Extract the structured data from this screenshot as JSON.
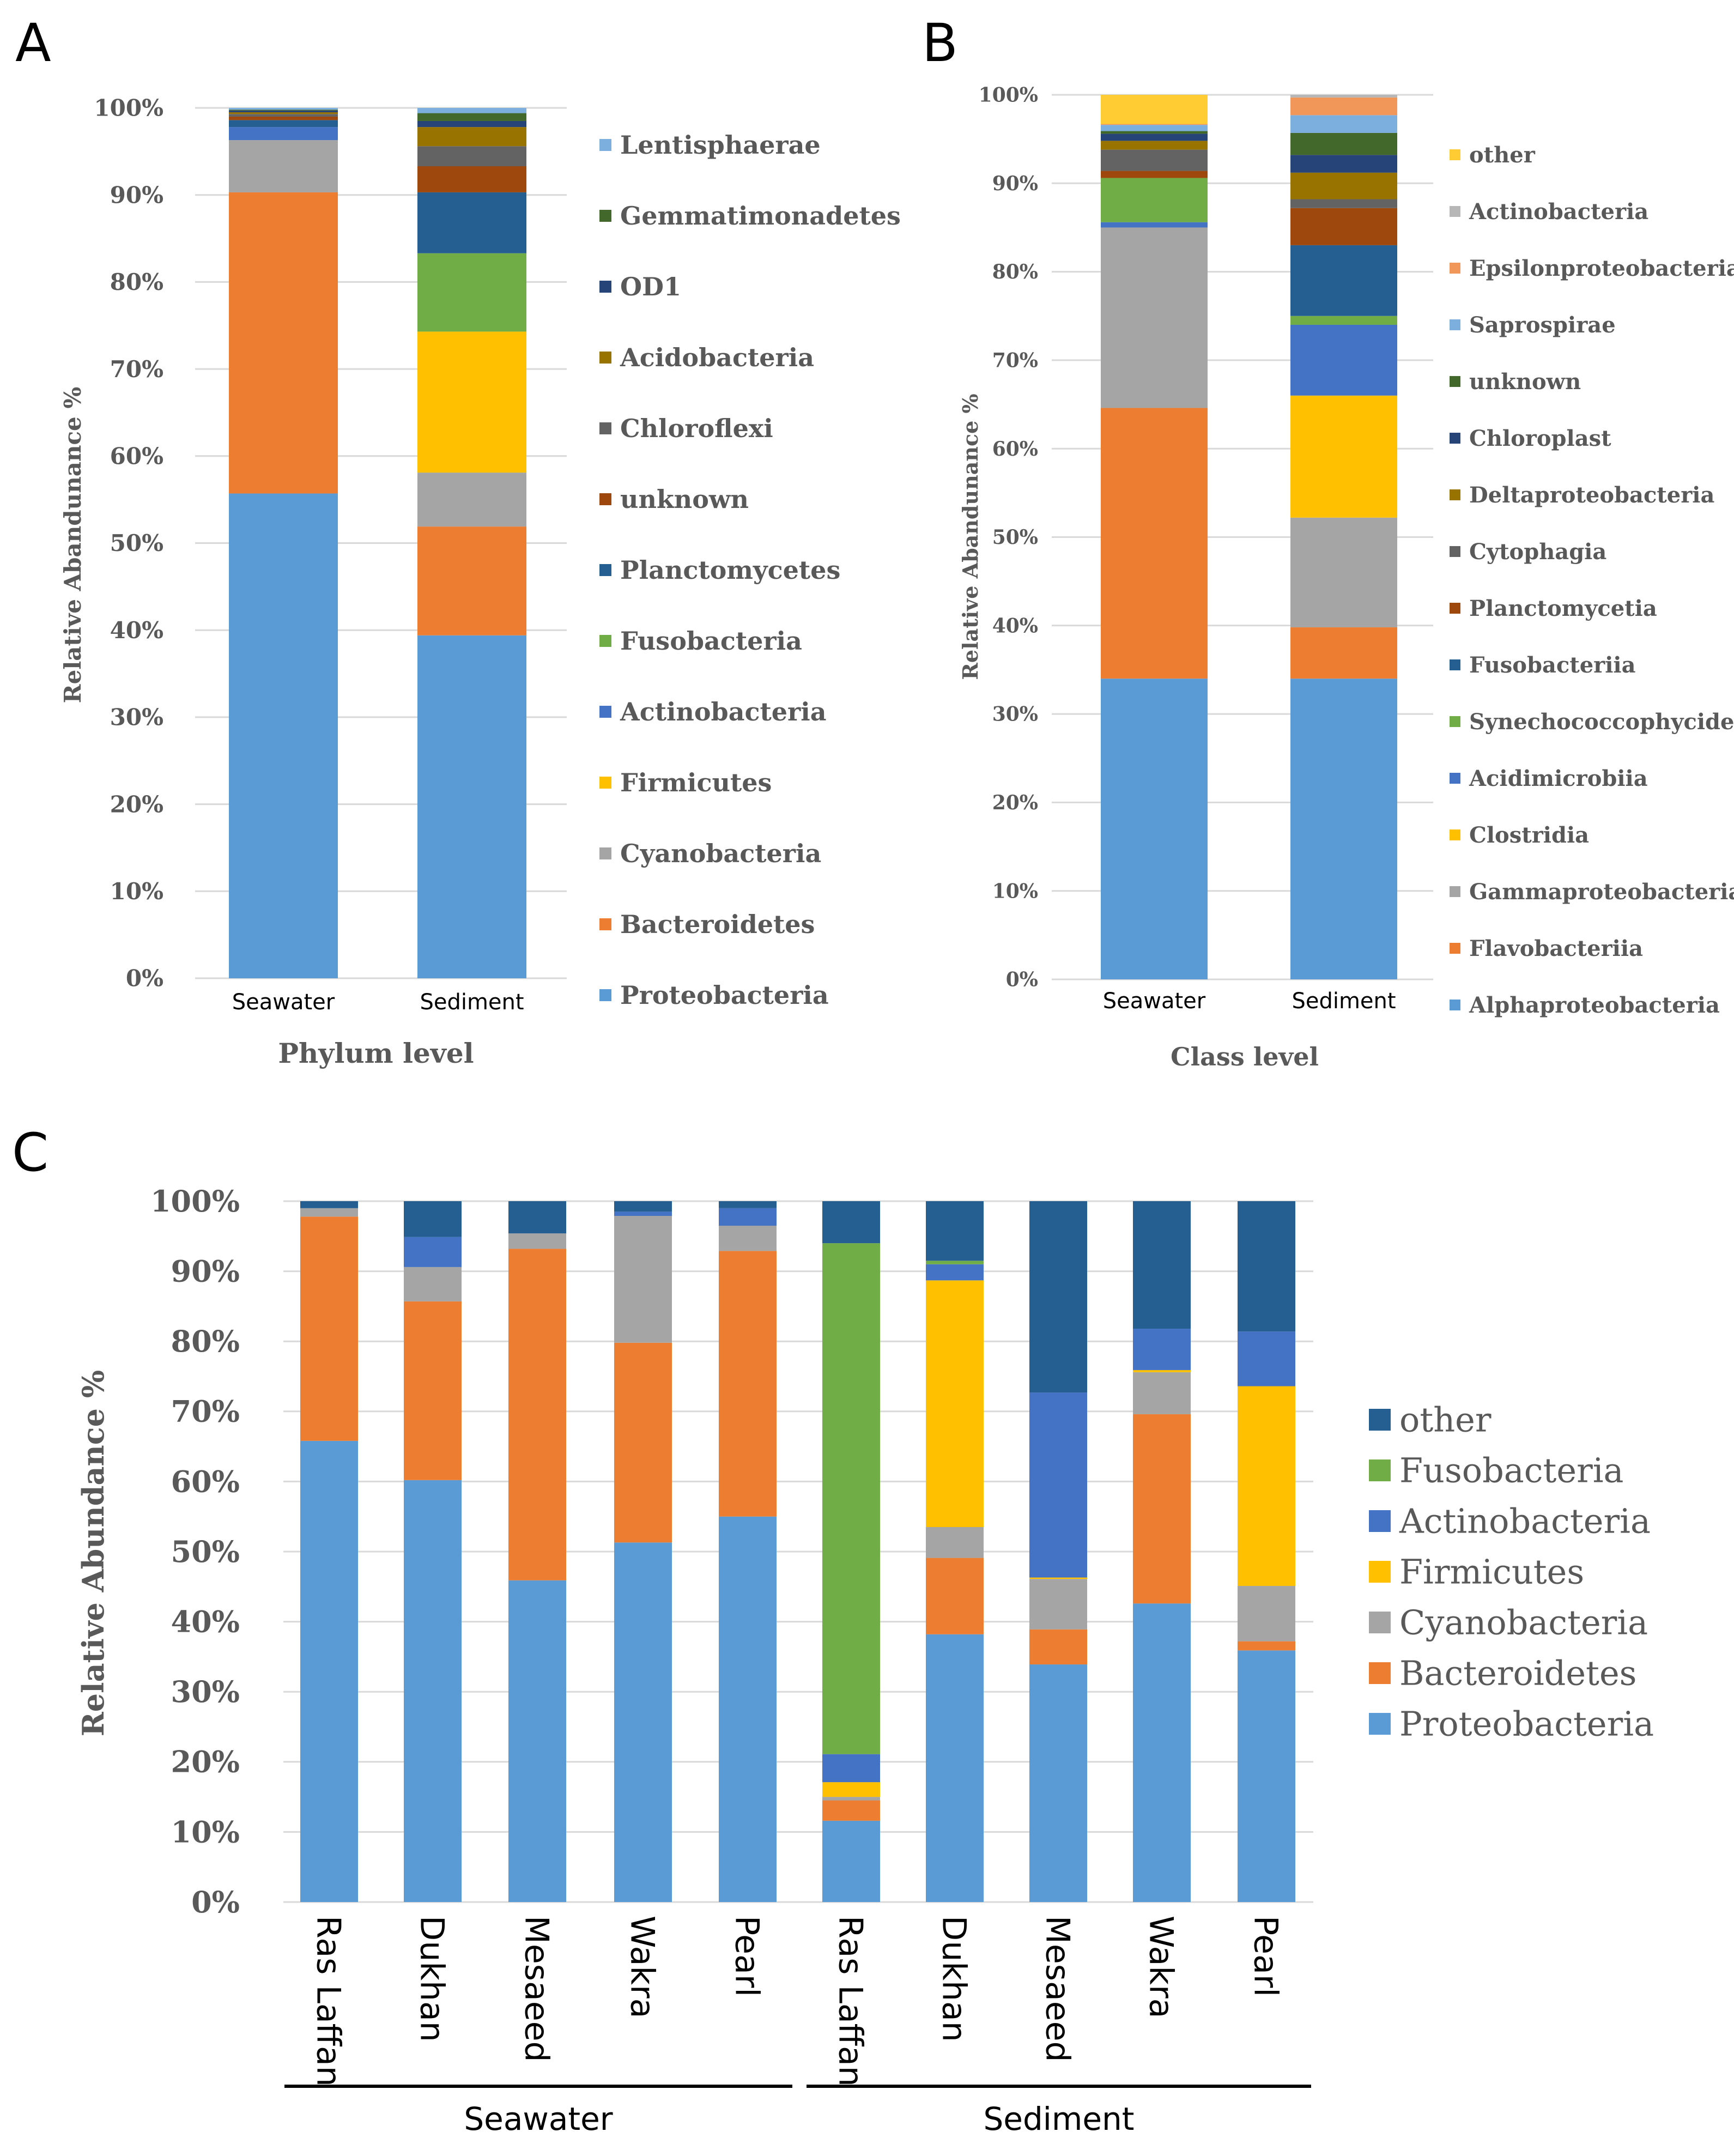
{
  "panels": {
    "A": {
      "letter": "A"
    },
    "B": {
      "letter": "B"
    },
    "C": {
      "letter": "C"
    }
  },
  "chart_data": [
    {
      "id": "A",
      "type": "bar",
      "stacked": true,
      "title": "Phylum level",
      "xlabel": "Phylum level",
      "ylabel": "Relative Abandunance %",
      "ylim": [
        0,
        100
      ],
      "yticks": [
        "0%",
        "10%",
        "20%",
        "30%",
        "40%",
        "50%",
        "60%",
        "70%",
        "80%",
        "90%",
        "100%"
      ],
      "categories": [
        "Seawater",
        "Sediment"
      ],
      "legend_position": "right",
      "series": [
        {
          "name": "Proteobacteria",
          "color": "#5b9bd5",
          "values": [
            55.7,
            39.4
          ]
        },
        {
          "name": "Bacteroidetes",
          "color": "#ed7d31",
          "values": [
            34.6,
            12.5
          ]
        },
        {
          "name": "Cyanobacteria",
          "color": "#a5a5a5",
          "values": [
            6.0,
            6.2
          ]
        },
        {
          "name": "Firmicutes",
          "color": "#ffc000",
          "values": [
            0.0,
            16.2
          ]
        },
        {
          "name": "Actinobacteria",
          "color": "#4472c4",
          "values": [
            1.5,
            0.0
          ]
        },
        {
          "name": "Fusobacteria",
          "color": "#70ad47",
          "values": [
            0.0,
            9.0
          ]
        },
        {
          "name": "Planctomycetes",
          "color": "#255e91",
          "values": [
            0.8,
            7.0
          ]
        },
        {
          "name": "unknown",
          "color": "#9e480e",
          "values": [
            0.4,
            3.0
          ]
        },
        {
          "name": "Chloroflexi",
          "color": "#636363",
          "values": [
            0.3,
            2.3
          ]
        },
        {
          "name": "Acidobacteria",
          "color": "#997300",
          "values": [
            0.2,
            2.2
          ]
        },
        {
          "name": "OD1",
          "color": "#264478",
          "values": [
            0.2,
            0.7
          ]
        },
        {
          "name": "Gemmatimonadetes",
          "color": "#43682b",
          "values": [
            0.1,
            0.9
          ]
        },
        {
          "name": "Lentisphaerae",
          "color": "#7cafdd",
          "values": [
            0.2,
            0.6
          ]
        }
      ]
    },
    {
      "id": "B",
      "type": "bar",
      "stacked": true,
      "title": "Class level",
      "xlabel": "Class level",
      "ylabel": "Relative Abandunance %",
      "ylim": [
        0,
        100
      ],
      "yticks": [
        "0%",
        "10%",
        "20%",
        "30%",
        "40%",
        "50%",
        "60%",
        "70%",
        "80%",
        "90%",
        "100%"
      ],
      "categories": [
        "Seawater",
        "Sediment"
      ],
      "legend_position": "right",
      "series": [
        {
          "name": "Alphaproteobacteria",
          "color": "#5b9bd5",
          "values": [
            34.0,
            34.0
          ]
        },
        {
          "name": "Flavobacteriia",
          "color": "#ed7d31",
          "values": [
            30.6,
            5.8
          ]
        },
        {
          "name": "Gammaproteobacteria",
          "color": "#a5a5a5",
          "values": [
            20.4,
            12.4
          ]
        },
        {
          "name": "Clostridia",
          "color": "#ffc000",
          "values": [
            0.0,
            13.8
          ]
        },
        {
          "name": "Acidimicrobiia",
          "color": "#4472c4",
          "values": [
            0.6,
            8.0
          ]
        },
        {
          "name": "Synechococcophycideae",
          "color": "#70ad47",
          "values": [
            5.0,
            1.0
          ]
        },
        {
          "name": "Fusobacteriia",
          "color": "#255e91",
          "values": [
            0.0,
            8.0
          ]
        },
        {
          "name": "Planctomycetia",
          "color": "#9e480e",
          "values": [
            0.8,
            4.2
          ]
        },
        {
          "name": "Cytophagia",
          "color": "#636363",
          "values": [
            2.4,
            1.0
          ]
        },
        {
          "name": "Deltaproteobacteria",
          "color": "#997300",
          "values": [
            1.0,
            3.0
          ]
        },
        {
          "name": "Chloroplast",
          "color": "#264478",
          "values": [
            0.8,
            2.0
          ]
        },
        {
          "name": "unknown",
          "color": "#43682b",
          "values": [
            0.3,
            2.5
          ]
        },
        {
          "name": "Saprospirae",
          "color": "#7cafdd",
          "values": [
            0.7,
            2.0
          ]
        },
        {
          "name": "Epsilonproteobacteria",
          "color": "#f1975a",
          "values": [
            0.1,
            2.0
          ]
        },
        {
          "name": "Actinobacteria",
          "color": "#b7b7b7",
          "values": [
            0.0,
            0.3
          ]
        },
        {
          "name": "other",
          "color": "#ffcd33",
          "values": [
            3.3,
            0.0
          ]
        }
      ]
    },
    {
      "id": "C",
      "type": "bar",
      "stacked": true,
      "title": "",
      "xlabel": "",
      "ylabel": "Relative Abundance %",
      "ylim": [
        0,
        100
      ],
      "yticks": [
        "0%",
        "10%",
        "20%",
        "30%",
        "40%",
        "50%",
        "60%",
        "70%",
        "80%",
        "90%",
        "100%"
      ],
      "categories": [
        "Ras Laffan",
        "Dukhan",
        "Mesaeed",
        "Wakra",
        "Pearl",
        "Ras Laffan",
        "Dukhan",
        "Mesaeed",
        "Wakra",
        "Pearl"
      ],
      "groups": [
        {
          "label": "Seawater",
          "from": 0,
          "to": 4
        },
        {
          "label": "Sediment",
          "from": 5,
          "to": 9
        }
      ],
      "legend_position": "right",
      "series": [
        {
          "name": "Proteobacteria",
          "color": "#5b9bd5",
          "values": [
            65.8,
            60.2,
            45.9,
            51.3,
            55.0,
            11.6,
            38.2,
            33.9,
            42.6,
            35.9
          ]
        },
        {
          "name": "Bacteroidetes",
          "color": "#ed7d31",
          "values": [
            32.0,
            25.5,
            47.3,
            28.5,
            37.9,
            2.9,
            10.9,
            5.0,
            27.0,
            1.3
          ]
        },
        {
          "name": "Cyanobacteria",
          "color": "#a5a5a5",
          "values": [
            1.2,
            4.9,
            2.2,
            18.1,
            3.6,
            0.5,
            4.4,
            7.2,
            6.0,
            7.9
          ]
        },
        {
          "name": "Firmicutes",
          "color": "#ffc000",
          "values": [
            0.0,
            0.0,
            0.0,
            0.0,
            0.0,
            2.1,
            35.2,
            0.2,
            0.3,
            28.5
          ]
        },
        {
          "name": "Actinobacteria",
          "color": "#4472c4",
          "values": [
            0.0,
            4.3,
            0.0,
            0.6,
            2.5,
            4.0,
            2.3,
            26.4,
            5.9,
            7.8
          ]
        },
        {
          "name": "Fusobacteria",
          "color": "#70ad47",
          "values": [
            0.0,
            0.0,
            0.0,
            0.0,
            0.0,
            72.9,
            0.5,
            0.0,
            0.0,
            0.0
          ]
        },
        {
          "name": "other",
          "color": "#255e91",
          "values": [
            1.0,
            5.1,
            4.6,
            1.5,
            1.0,
            6.0,
            8.5,
            27.3,
            18.2,
            18.6
          ]
        }
      ]
    }
  ]
}
